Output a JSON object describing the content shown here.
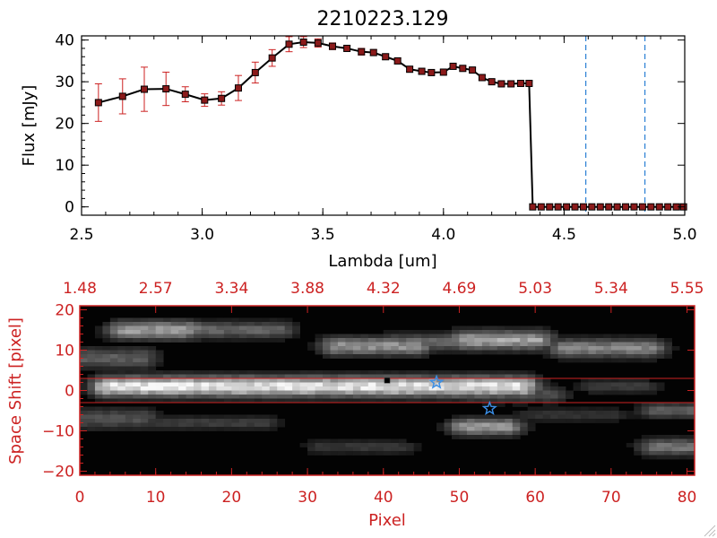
{
  "chart_data": [
    {
      "type": "line",
      "title": "2210223.129",
      "xlabel": "Lambda [um]",
      "ylabel": "Flux [mJy]",
      "xlim": [
        2.5,
        5.0
      ],
      "ylim": [
        -2,
        41
      ],
      "x_ticks": [
        2.5,
        3.0,
        3.5,
        4.0,
        4.5,
        5.0
      ],
      "x_tick_labels": [
        "2.5",
        "3.0",
        "3.5",
        "4.0",
        "4.5",
        "5.0"
      ],
      "y_ticks": [
        0,
        10,
        20,
        30,
        40
      ],
      "y_tick_labels": [
        "0",
        "10",
        "20",
        "30",
        "40"
      ],
      "marker": "square",
      "line_color": "#000000",
      "marker_color": "#8b1a1a",
      "errorbar_color": "#cc2222",
      "series": [
        {
          "x": [
            2.57,
            2.67,
            2.76,
            2.85,
            2.93,
            3.01,
            3.08,
            3.15,
            3.22,
            3.29,
            3.36,
            3.42,
            3.48,
            3.54,
            3.6,
            3.66,
            3.71,
            3.76,
            3.81,
            3.86,
            3.91,
            3.95,
            4.0,
            4.04,
            4.08,
            4.12,
            4.16,
            4.2,
            4.24,
            4.28,
            4.32,
            4.355
          ],
          "y": [
            25,
            26.5,
            28.2,
            28.3,
            27,
            25.6,
            26,
            28.5,
            32.2,
            35.7,
            39,
            39.5,
            39.3,
            38.5,
            38,
            37.2,
            37,
            36,
            35,
            33,
            32.5,
            32.2,
            32.3,
            33.7,
            33.2,
            32.8,
            31,
            30,
            29.5,
            29.5,
            29.6,
            29.6
          ],
          "yerr": [
            4.5,
            4.2,
            5.3,
            4.0,
            1.8,
            1.5,
            1.6,
            3.0,
            2.5,
            2.0,
            1.8,
            1.3,
            1.0,
            0.8,
            0.7,
            0.8,
            0.7,
            0.7,
            0.7,
            0.6,
            0.6,
            0.6,
            0.6,
            0.6,
            0.6,
            0.6,
            0.6,
            0.6,
            0.6,
            0.6,
            0.6,
            0.6
          ]
        },
        {
          "x": [
            4.37,
            4.405,
            4.44,
            4.475,
            4.51,
            4.545,
            4.58,
            4.615,
            4.65,
            4.685,
            4.72,
            4.755,
            4.79,
            4.825,
            4.86,
            4.895,
            4.93,
            4.965,
            4.995
          ],
          "y": [
            0,
            0,
            0,
            0,
            0,
            0,
            0,
            0,
            0,
            0,
            0,
            0,
            0,
            0,
            0,
            0,
            0,
            0,
            0
          ]
        }
      ],
      "dashed_vlines": [
        4.59,
        4.835
      ],
      "dashed_vline_color": "#2a7fd4",
      "dashed_hline_y": 0,
      "dashed_hline_color": "#cc2222"
    },
    {
      "type": "heatmap",
      "xlabel": "Pixel",
      "ylabel": "Space Shift [pixel]",
      "xlim": [
        0,
        81
      ],
      "ylim": [
        -21,
        21
      ],
      "x_ticks": [
        0,
        10,
        20,
        30,
        40,
        50,
        60,
        70,
        80
      ],
      "x_tick_labels": [
        "0",
        "10",
        "20",
        "30",
        "40",
        "50",
        "60",
        "70",
        "80"
      ],
      "y_ticks": [
        -20,
        -10,
        0,
        10,
        20
      ],
      "y_tick_labels": [
        "−20",
        "−10",
        "0",
        "10",
        "20"
      ],
      "top_axis_ticks": [
        0,
        10,
        20,
        30,
        40,
        50,
        60,
        70,
        80
      ],
      "top_axis_labels": [
        "1.48",
        "2.57",
        "3.34",
        "3.88",
        "4.32",
        "4.69",
        "5.03",
        "5.34",
        "5.55"
      ],
      "axis_color": "#cc2222",
      "aperture_lines_y": [
        3,
        -3
      ],
      "aperture_line_color": "#cc2222",
      "source_marker": {
        "x": 40.5,
        "y": 2.5,
        "color": "#000000"
      },
      "star_markers": [
        {
          "x": 47,
          "y": 2,
          "color": "#3a8ee6"
        },
        {
          "x": 54,
          "y": -4.5,
          "color": "#3a8ee6"
        }
      ],
      "blobs": [
        {
          "x0": 4,
          "x1": 58,
          "y": 1,
          "h": 2.4,
          "v": 0.92
        },
        {
          "x0": 5,
          "x1": 16,
          "y": 1,
          "h": 2.2,
          "v": 1.0
        },
        {
          "x0": 6,
          "x1": 14,
          "y": 15,
          "h": 2.2,
          "v": 0.62
        },
        {
          "x0": 14,
          "x1": 26,
          "y": 15,
          "h": 2.0,
          "v": 0.38
        },
        {
          "x0": 34,
          "x1": 44,
          "y": 11,
          "h": 2.2,
          "v": 0.58
        },
        {
          "x0": 42,
          "x1": 50,
          "y": 12,
          "h": 2.0,
          "v": 0.4
        },
        {
          "x0": 51,
          "x1": 60,
          "y": 12.5,
          "h": 2.3,
          "v": 0.65
        },
        {
          "x0": 64,
          "x1": 75,
          "y": 10.5,
          "h": 2.2,
          "v": 0.52
        },
        {
          "x0": 51,
          "x1": 56,
          "y": -9,
          "h": 2.0,
          "v": 0.62
        },
        {
          "x0": 52,
          "x1": 62,
          "y": -1,
          "h": 2.0,
          "v": 0.3
        },
        {
          "x0": 0,
          "x1": 8,
          "y": 8,
          "h": 2.5,
          "v": 0.35
        },
        {
          "x0": 0,
          "x1": 8,
          "y": -7,
          "h": 2.5,
          "v": 0.3
        },
        {
          "x0": 76,
          "x1": 81,
          "y": -14,
          "h": 2.0,
          "v": 0.45
        },
        {
          "x0": 76,
          "x1": 81,
          "y": -5,
          "h": 1.8,
          "v": 0.35
        },
        {
          "x0": 10,
          "x1": 24,
          "y": -8,
          "h": 1.6,
          "v": 0.22
        },
        {
          "x0": 32,
          "x1": 42,
          "y": -14,
          "h": 1.6,
          "v": 0.2
        },
        {
          "x0": 68,
          "x1": 74,
          "y": 1,
          "h": 1.6,
          "v": 0.22
        },
        {
          "x0": 60,
          "x1": 70,
          "y": -6,
          "h": 1.6,
          "v": 0.18
        }
      ]
    }
  ]
}
